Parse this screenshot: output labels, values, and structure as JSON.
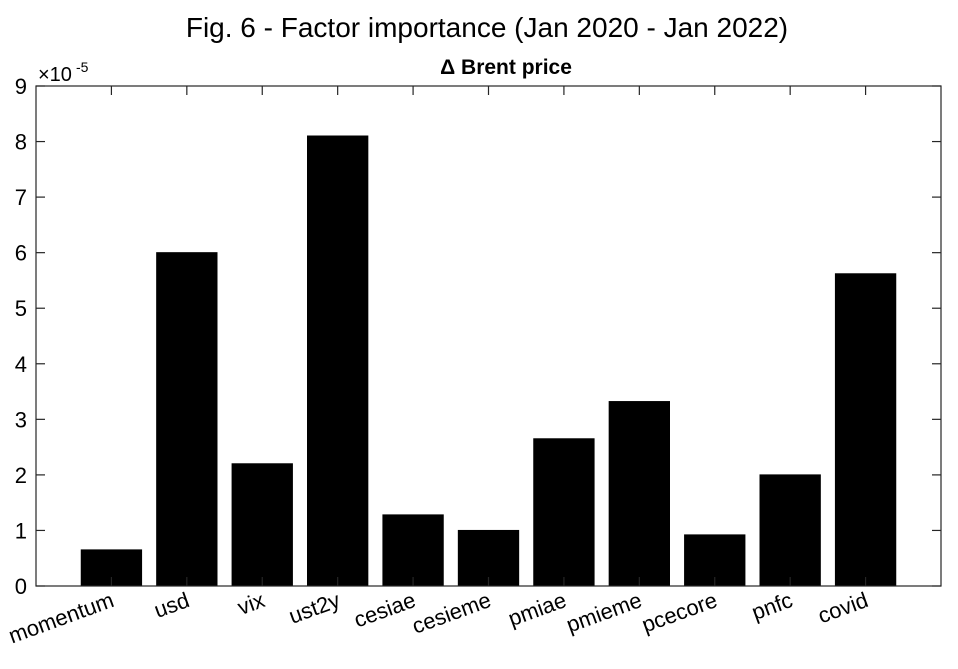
{
  "chart_data": {
    "type": "bar",
    "title": "Fig. 6 - Factor importance (Jan 2020 - Jan 2022)",
    "subtitle": "Δ Brent price",
    "xlabel": "",
    "ylabel": "",
    "y_multiplier": "×10",
    "y_multiplier_exponent": "-5",
    "categories": [
      "momentum",
      "usd",
      "vix",
      "ust2y",
      "cesiae",
      "cesieme",
      "pmiae",
      "pmieme",
      "pcecore",
      "pnfc",
      "covid"
    ],
    "values": [
      0.65,
      6.0,
      2.2,
      8.1,
      1.28,
      1.0,
      2.65,
      3.32,
      0.92,
      2.0,
      5.62
    ],
    "ylim": [
      0,
      9
    ],
    "yticks": [
      "0",
      "1",
      "2",
      "3",
      "4",
      "5",
      "6",
      "7",
      "8",
      "9"
    ],
    "bar_color": "#000000",
    "grid": false,
    "legend": "none"
  }
}
